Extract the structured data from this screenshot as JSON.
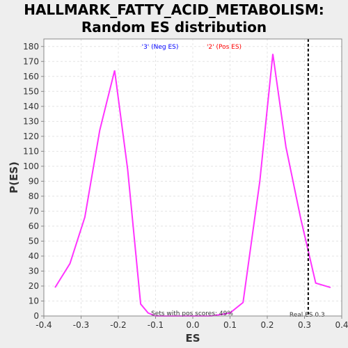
{
  "chart_data": {
    "type": "line",
    "title_line1": "HALLMARK_FATTY_ACID_METABOLISM:",
    "title_line2": "Random ES distribution",
    "xlabel": "ES",
    "ylabel": "P(ES)",
    "xlim": [
      -0.4,
      0.4
    ],
    "ylim": [
      0,
      185
    ],
    "x_ticks": [
      "-0.4",
      "-0.3",
      "-0.2",
      "-0.1",
      "0.0",
      "0.1",
      "0.2",
      "0.3",
      "0.4"
    ],
    "y_ticks": [
      "0",
      "10",
      "20",
      "30",
      "40",
      "50",
      "60",
      "70",
      "80",
      "90",
      "100",
      "110",
      "120",
      "130",
      "140",
      "150",
      "160",
      "170",
      "180"
    ],
    "grid": true,
    "series": [
      {
        "color": "#ff33ff",
        "points": [
          [
            -0.37,
            19
          ],
          [
            -0.33,
            35
          ],
          [
            -0.29,
            66
          ],
          [
            -0.25,
            124
          ],
          [
            -0.21,
            164
          ],
          [
            -0.175,
            98
          ],
          [
            -0.14,
            8
          ],
          [
            -0.12,
            2
          ],
          [
            -0.1,
            0
          ],
          [
            0.05,
            0
          ],
          [
            0.1,
            2
          ],
          [
            0.135,
            9
          ],
          [
            0.18,
            90
          ],
          [
            0.215,
            175
          ],
          [
            0.25,
            113
          ],
          [
            0.29,
            65
          ],
          [
            0.33,
            22
          ],
          [
            0.37,
            19
          ]
        ]
      }
    ],
    "real_es": 0.31,
    "legend": {
      "neg": {
        "text": "'3' (Neg ES)",
        "color": "#0000ff"
      },
      "pos": {
        "text": "'2' (Pos ES)",
        "color": "#ff0000"
      }
    },
    "pos_scores_text": "Sets with pos scores: 49%",
    "real_es_text": "Real ES 0.3"
  }
}
